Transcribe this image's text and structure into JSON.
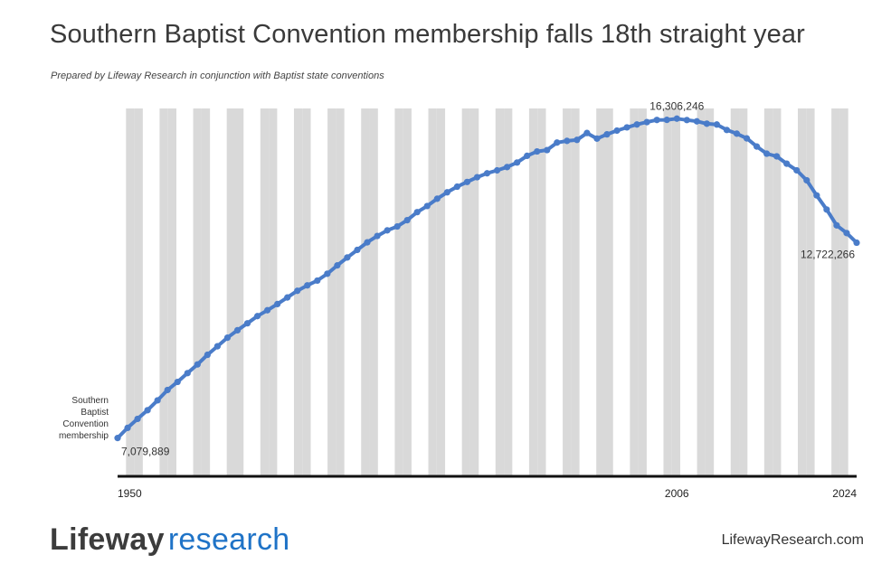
{
  "header": {
    "title": "Southern Baptist Convention membership falls 18th straight year",
    "subtitle": "Prepared by Lifeway Research in conjunction with Baptist state conventions"
  },
  "footer": {
    "brand_bold": "Lifeway",
    "brand_light": "research",
    "site": "LifewayResearch.com"
  },
  "colors": {
    "line": "#4a7cc9",
    "stripe": "#d9d9d9",
    "axis": "#111111"
  },
  "chart_data": {
    "type": "line",
    "title": "Southern Baptist Convention membership falls 18th straight year",
    "series_label_lines": [
      "Southern",
      "Baptist",
      "Convention",
      "membership"
    ],
    "x_tick_labels": [
      "1950",
      "2006",
      "2024"
    ],
    "xlim": [
      1950,
      2024
    ],
    "ylim": [
      6000000,
      16600000
    ],
    "grid": "alternating vertical stripes",
    "annotations": [
      {
        "x": 1950,
        "label": "7,079,889"
      },
      {
        "x": 2006,
        "label": "16,306,246"
      },
      {
        "x": 2024,
        "label": "12,722,266"
      }
    ],
    "series": [
      {
        "name": "Southern Baptist Convention membership",
        "x": [
          1950,
          1951,
          1952,
          1953,
          1954,
          1955,
          1956,
          1957,
          1958,
          1959,
          1960,
          1961,
          1962,
          1963,
          1964,
          1965,
          1966,
          1967,
          1968,
          1969,
          1970,
          1971,
          1972,
          1973,
          1974,
          1975,
          1976,
          1977,
          1978,
          1979,
          1980,
          1981,
          1982,
          1983,
          1984,
          1985,
          1986,
          1987,
          1988,
          1989,
          1990,
          1991,
          1992,
          1993,
          1994,
          1995,
          1996,
          1997,
          1998,
          1999,
          2000,
          2001,
          2002,
          2003,
          2004,
          2005,
          2006,
          2007,
          2008,
          2009,
          2010,
          2011,
          2012,
          2013,
          2014,
          2015,
          2016,
          2017,
          2018,
          2019,
          2020,
          2021,
          2022,
          2023,
          2024
        ],
        "values": [
          7079889,
          7373000,
          7634000,
          7884000,
          8169000,
          8468000,
          8700000,
          8955000,
          9206000,
          9485000,
          9731000,
          9979000,
          10193000,
          10395000,
          10602000,
          10771000,
          10950000,
          11140000,
          11333000,
          11490000,
          11628000,
          11826000,
          12067000,
          12296000,
          12514000,
          12733000,
          12917000,
          13079000,
          13191000,
          13373000,
          13606000,
          13782000,
          13992000,
          14178000,
          14341000,
          14477000,
          14614000,
          14727000,
          14812000,
          14907000,
          15038000,
          15232000,
          15358000,
          15398000,
          15614000,
          15663000,
          15692000,
          15891000,
          15729000,
          15852000,
          15960000,
          16053000,
          16137000,
          16206000,
          16268000,
          16270000,
          16306246,
          16266000,
          16228000,
          16160000,
          16136000,
          15978000,
          15872000,
          15735000,
          15500000,
          15294000,
          15217000,
          15005000,
          14813000,
          14525000,
          14089000,
          13680000,
          13223000,
          13001000,
          12722266
        ]
      }
    ]
  }
}
